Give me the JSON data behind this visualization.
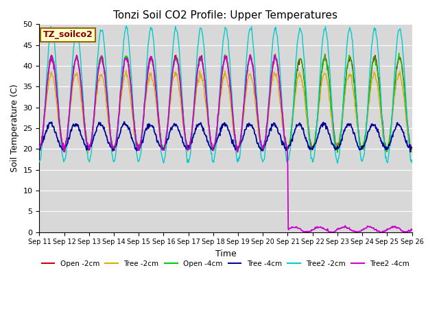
{
  "title": "Tonzi Soil CO2 Profile: Upper Temperatures",
  "ylabel": "Soil Temperature (C)",
  "xlabel": "Time",
  "ylim": [
    0,
    50
  ],
  "yticks": [
    0,
    5,
    10,
    15,
    20,
    25,
    30,
    35,
    40,
    45,
    50
  ],
  "xtick_labels": [
    "Sep 11",
    "Sep 12",
    "Sep 13",
    "Sep 14",
    "Sep 15",
    "Sep 16",
    "Sep 17",
    "Sep 18",
    "Sep 19",
    "Sep 20",
    "Sep 21",
    "Sep 22",
    "Sep 23",
    "Sep 24",
    "Sep 25",
    "Sep 26"
  ],
  "legend_label": "TZ_soilco2",
  "series_labels": [
    "Open -2cm",
    "Tree -2cm",
    "Open -4cm",
    "Tree -4cm",
    "Tree2 -2cm",
    "Tree2 -4cm"
  ],
  "series_colors": [
    "#cc0000",
    "#ddaa00",
    "#00cc00",
    "#000099",
    "#00cccc",
    "#cc00cc"
  ],
  "fig_bg": "#ffffff",
  "plot_bg": "#d8d8d8",
  "grid_color": "#ffffff",
  "title_fontsize": 11,
  "axis_fontsize": 9,
  "tick_fontsize": 8,
  "legend_box_color": "#ffffcc",
  "legend_box_edge": "#996600",
  "legend_text_color": "#880000",
  "n_days": 15,
  "drop_day": 10,
  "seed": 12345
}
